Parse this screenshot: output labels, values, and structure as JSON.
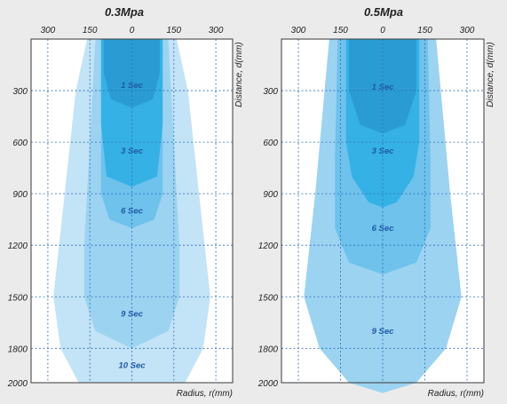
{
  "chart_data": [
    {
      "type": "area",
      "title": "0.3Mpa",
      "xlabel": "Radius, r(mm)",
      "ylabel": "Distance, d(mm)",
      "x_ticks": [
        300,
        150,
        0,
        150,
        300
      ],
      "y_ticks": [
        300,
        600,
        900,
        1200,
        1500,
        1800,
        2000
      ],
      "xlim": [
        -360,
        360
      ],
      "ylim": [
        0,
        2000
      ],
      "grid": true,
      "zones": [
        {
          "label": "10 Sec",
          "label_d": 1900,
          "color": "#c3e3f6",
          "right_profile": [
            [
              0,
              160
            ],
            [
              300,
              200
            ],
            [
              900,
              240
            ],
            [
              1500,
              280
            ],
            [
              1800,
              255
            ],
            [
              2000,
              190
            ]
          ]
        },
        {
          "label": "9 Sec",
          "label_d": 1600,
          "color": "#9cd3f1",
          "right_profile": [
            [
              0,
              130
            ],
            [
              600,
              150
            ],
            [
              1200,
              170
            ],
            [
              1500,
              170
            ],
            [
              1700,
              130
            ],
            [
              1800,
              0
            ]
          ]
        },
        {
          "label": "6 Sec",
          "label_d": 1000,
          "color": "#6ec2ec",
          "right_profile": [
            [
              0,
              100
            ],
            [
              600,
              110
            ],
            [
              900,
              110
            ],
            [
              1050,
              80
            ],
            [
              1100,
              0
            ]
          ]
        },
        {
          "label": "3 Sec",
          "label_d": 650,
          "color": "#35b1e5",
          "right_profile": [
            [
              0,
              110
            ],
            [
              500,
              110
            ],
            [
              800,
              90
            ],
            [
              860,
              0
            ]
          ]
        },
        {
          "label": "1 Sec",
          "label_d": 270,
          "color": "#2a9cd3",
          "right_profile": [
            [
              0,
              100
            ],
            [
              200,
              100
            ],
            [
              350,
              75
            ],
            [
              400,
              0
            ]
          ]
        }
      ]
    },
    {
      "type": "area",
      "title": "0.5Mpa",
      "xlabel": "Radius, r(mm)",
      "ylabel": "Distance, d(mm)",
      "x_ticks": [
        300,
        150,
        0,
        150,
        300
      ],
      "y_ticks": [
        300,
        600,
        900,
        1200,
        1500,
        1800,
        2000
      ],
      "xlim": [
        -360,
        360
      ],
      "ylim": [
        0,
        2000
      ],
      "grid": true,
      "zones": [
        {
          "label": "9 Sec",
          "label_d": 1700,
          "color": "#9cd3f1",
          "right_profile": [
            [
              0,
              190
            ],
            [
              900,
              240
            ],
            [
              1500,
              280
            ],
            [
              1800,
              225
            ],
            [
              2000,
              120
            ],
            [
              2060,
              0
            ]
          ]
        },
        {
          "label": "6 Sec",
          "label_d": 1100,
          "color": "#6ec2ec",
          "right_profile": [
            [
              0,
              160
            ],
            [
              700,
              170
            ],
            [
              1100,
              170
            ],
            [
              1300,
              120
            ],
            [
              1370,
              0
            ]
          ]
        },
        {
          "label": "3 Sec",
          "label_d": 650,
          "color": "#35b1e5",
          "right_profile": [
            [
              0,
              130
            ],
            [
              600,
              130
            ],
            [
              800,
              110
            ],
            [
              950,
              50
            ],
            [
              980,
              0
            ]
          ]
        },
        {
          "label": "1 Sec",
          "label_d": 280,
          "color": "#2a9cd3",
          "right_profile": [
            [
              0,
              120
            ],
            [
              300,
              120
            ],
            [
              500,
              80
            ],
            [
              550,
              0
            ]
          ]
        }
      ]
    }
  ]
}
